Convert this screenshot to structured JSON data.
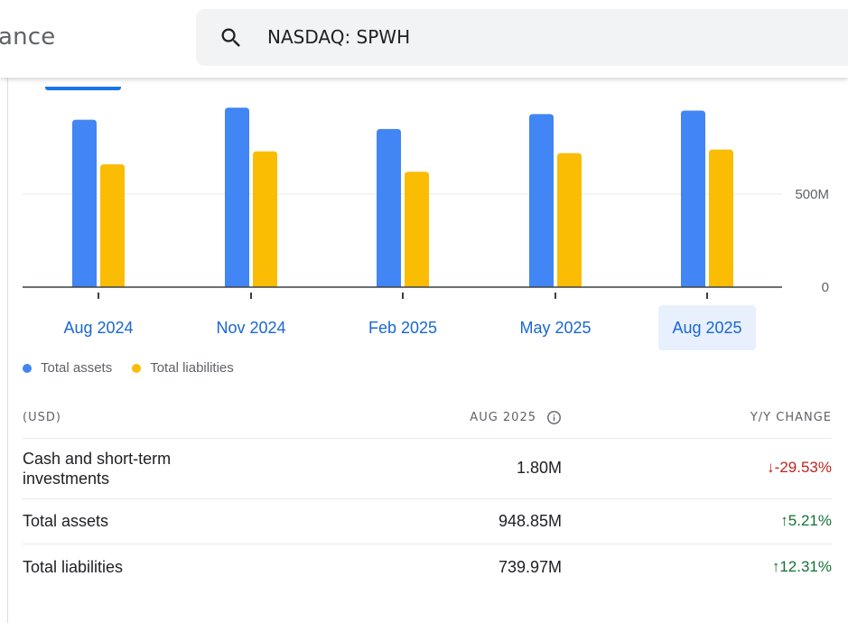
{
  "header": {
    "brand_text": "ance",
    "search": {
      "value": "NASDAQ: SPWH",
      "icon": "search-icon"
    }
  },
  "chart_data": {
    "type": "bar",
    "categories": [
      "Aug 2024",
      "Nov 2024",
      "Feb 2025",
      "May 2025",
      "Aug 2025"
    ],
    "series": [
      {
        "name": "Total assets",
        "color": "#4285f4",
        "values": [
          900,
          965,
          850,
          930,
          948.85
        ]
      },
      {
        "name": "Total liabilities",
        "color": "#fbbc04",
        "values": [
          660,
          730,
          620,
          720,
          739.97
        ]
      }
    ],
    "y_ticks": [
      {
        "value": 0,
        "label": "0"
      },
      {
        "value": 500,
        "label": "500M"
      }
    ],
    "y_axis_side": "right",
    "selected_category": "Aug 2025",
    "grid": true
  },
  "legend": [
    {
      "label": "Total assets",
      "color": "#4285f4"
    },
    {
      "label": "Total liabilities",
      "color": "#fbbc04"
    }
  ],
  "table": {
    "headers": {
      "currency": "(USD)",
      "period": "AUG 2025",
      "change": "Y/Y CHANGE"
    },
    "rows": [
      {
        "label": "Cash and short-term investments",
        "value": "1.80M",
        "change": "-29.53%",
        "direction": "down"
      },
      {
        "label": "Total assets",
        "value": "948.85M",
        "change": "5.21%",
        "direction": "up"
      },
      {
        "label": "Total liabilities",
        "value": "739.97M",
        "change": "12.31%",
        "direction": "up"
      }
    ]
  }
}
